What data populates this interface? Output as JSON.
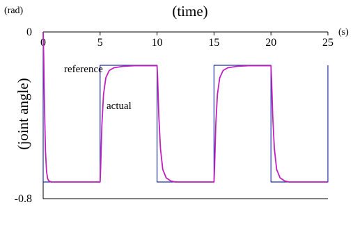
{
  "chart_data": {
    "type": "line",
    "title": "(time)",
    "xlabel": "(time)",
    "ylabel": "(joint angle)",
    "x_unit": "(s)",
    "y_unit": "(rad)",
    "xlim": [
      0,
      25
    ],
    "ylim": [
      -0.8,
      0
    ],
    "xticks": [
      0,
      5,
      10,
      15,
      20,
      25
    ],
    "yticks": [
      0,
      -0.8
    ],
    "grid": false,
    "legend": "none",
    "annotations": [
      {
        "text": "reference",
        "x": 5.7,
        "y": -0.12
      },
      {
        "text": "actual",
        "x": 6.1,
        "y": -0.2
      }
    ],
    "series": [
      {
        "name": "reference",
        "color": "#1f2fa8",
        "x": [
          0,
          0,
          5,
          5,
          10,
          10,
          15,
          15,
          20,
          20,
          25,
          25
        ],
        "y": [
          0,
          -0.72,
          -0.72,
          -0.16,
          -0.16,
          -0.72,
          -0.72,
          -0.16,
          -0.16,
          -0.72,
          -0.72,
          -0.16
        ]
      },
      {
        "name": "actual",
        "color": "#c020c0",
        "x": [
          0,
          0.05,
          0.1,
          0.15,
          0.2,
          0.3,
          0.4,
          0.5,
          0.7,
          1.0,
          5.0,
          5.05,
          5.15,
          5.3,
          5.5,
          5.8,
          6.2,
          7.0,
          8.0,
          10.0,
          10.05,
          10.15,
          10.3,
          10.5,
          10.8,
          11.2,
          11.6,
          15.0,
          15.05,
          15.15,
          15.3,
          15.5,
          15.8,
          16.2,
          17.0,
          18.0,
          20.0,
          20.05,
          20.15,
          20.3,
          20.5,
          20.8,
          21.2,
          21.6,
          25.0
        ],
        "y": [
          0,
          -0.12,
          -0.3,
          -0.45,
          -0.57,
          -0.67,
          -0.705,
          -0.715,
          -0.72,
          -0.72,
          -0.72,
          -0.65,
          -0.45,
          -0.3,
          -0.22,
          -0.185,
          -0.172,
          -0.165,
          -0.162,
          -0.162,
          -0.22,
          -0.4,
          -0.56,
          -0.66,
          -0.7,
          -0.715,
          -0.72,
          -0.72,
          -0.65,
          -0.45,
          -0.3,
          -0.22,
          -0.185,
          -0.172,
          -0.165,
          -0.162,
          -0.162,
          -0.22,
          -0.4,
          -0.56,
          -0.66,
          -0.7,
          -0.715,
          -0.72,
          -0.72
        ]
      }
    ]
  }
}
